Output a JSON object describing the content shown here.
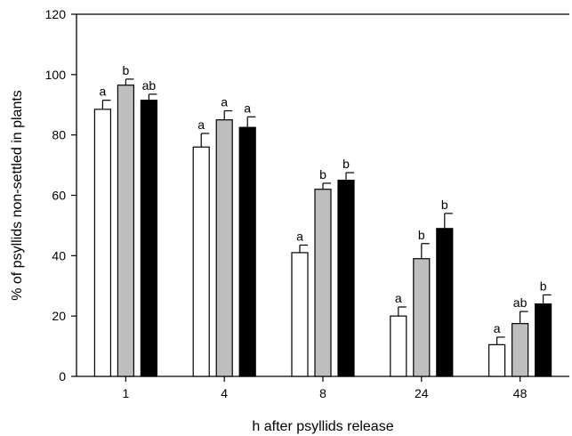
{
  "chart_data": {
    "type": "bar",
    "title": "",
    "xlabel": "h after psyllids release",
    "ylabel": "% of psyllids non-settled in plants",
    "categories": [
      "1",
      "4",
      "8",
      "24",
      "48"
    ],
    "ylim": [
      0,
      120
    ],
    "yticks": [
      0,
      20,
      40,
      60,
      80,
      100,
      120
    ],
    "grid": false,
    "series": [
      {
        "color": "#ffffff",
        "values": [
          88.5,
          76,
          41,
          20,
          10.5
        ],
        "errors": [
          3,
          4.5,
          2.5,
          3,
          2.5
        ],
        "letters": [
          "a",
          "a",
          "a",
          "a",
          "a"
        ]
      },
      {
        "color": "#bebebe",
        "values": [
          96.5,
          85,
          62,
          39,
          17.5
        ],
        "errors": [
          2,
          3,
          2,
          5,
          4
        ],
        "letters": [
          "b",
          "a",
          "b",
          "b",
          "ab"
        ]
      },
      {
        "color": "#000000",
        "values": [
          91.5,
          82.5,
          65,
          49,
          24
        ],
        "errors": [
          2,
          3.5,
          2.5,
          5,
          3
        ],
        "letters": [
          "ab",
          "a",
          "b",
          "b",
          "b"
        ]
      }
    ]
  }
}
